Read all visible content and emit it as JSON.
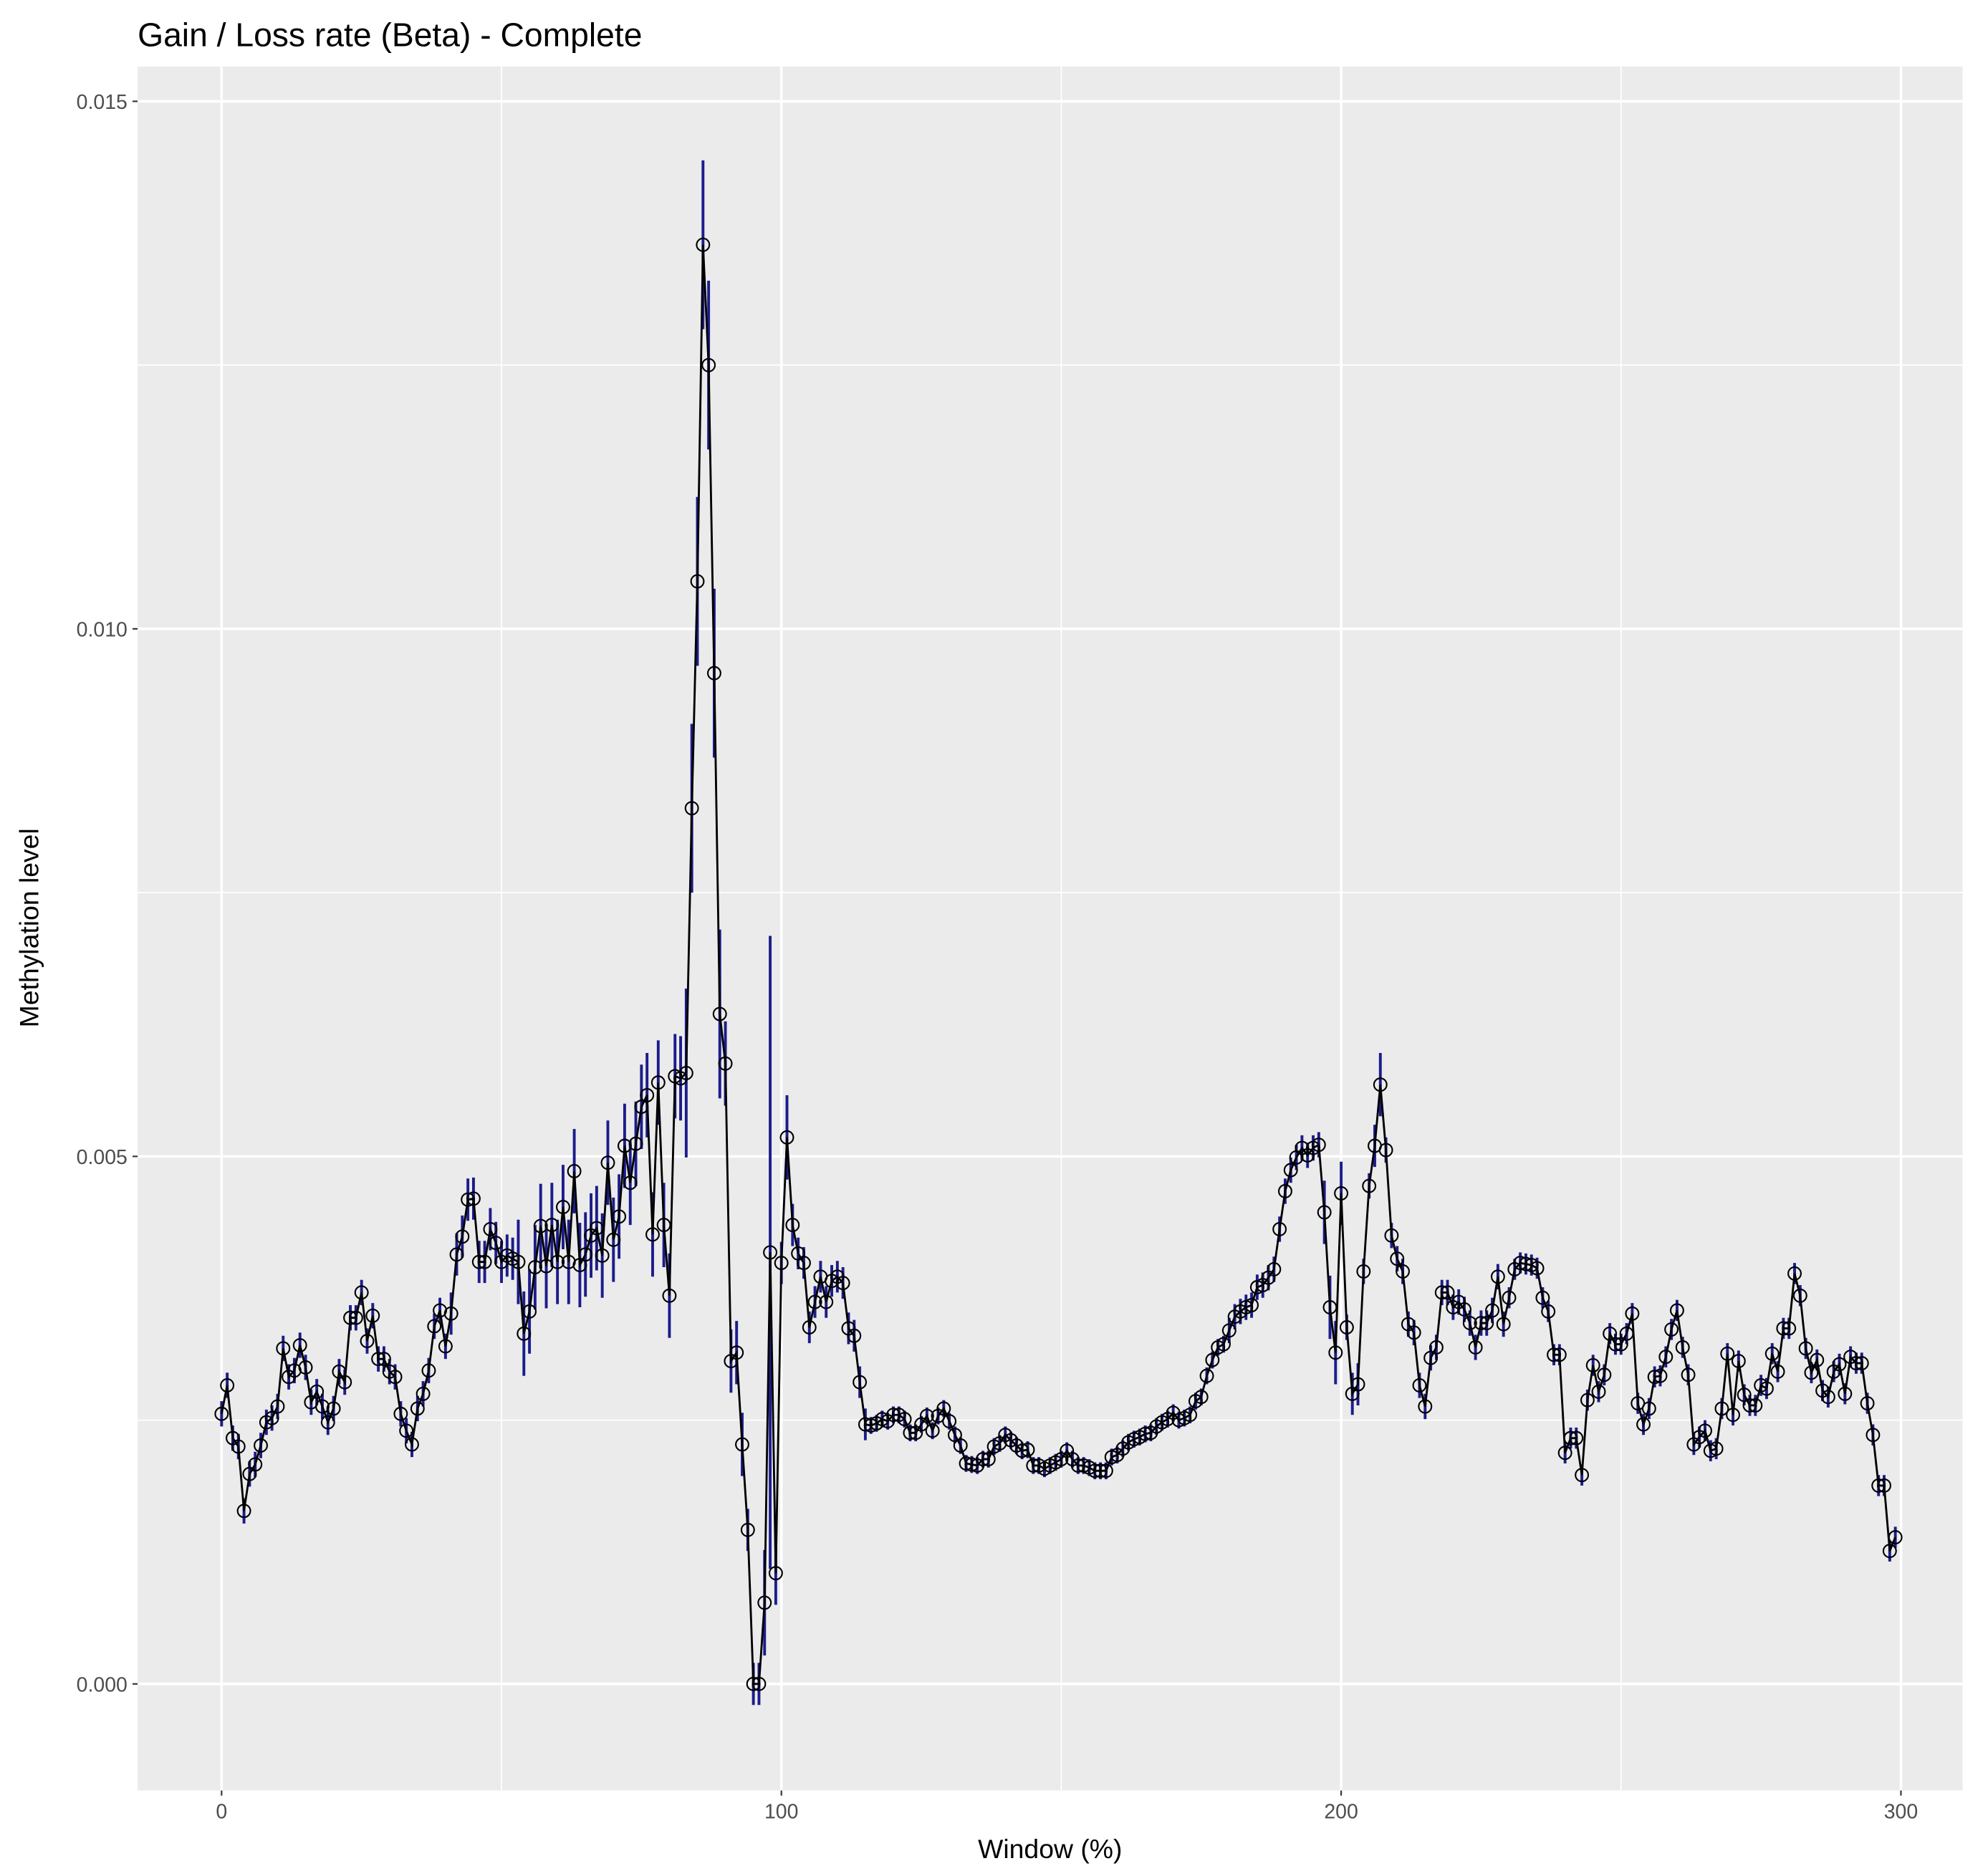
{
  "chart_data": {
    "type": "line-errorbar",
    "title": "Gain / Loss rate (Beta) - Complete",
    "xlabel": "Window (%)",
    "ylabel": "Methylation level",
    "xlim": [
      -15,
      311
    ],
    "ylim": [
      -0.00101,
      0.01533
    ],
    "xticks": [
      0,
      100,
      200,
      300
    ],
    "yticks": [
      {
        "value": 0,
        "label": "0.000"
      },
      0.005,
      {
        "value": 0.01,
        "label": "0.010"
      },
      0.015
    ],
    "grid": true,
    "line_color": "#000000",
    "error_color": "#1c1c8c",
    "point_color": "#000000",
    "x": [
      0,
      1,
      2,
      3,
      4,
      5,
      6,
      7,
      8,
      9,
      10,
      11,
      12,
      13,
      14,
      15,
      16,
      17,
      18,
      19,
      20,
      21,
      22,
      23,
      24,
      25,
      26,
      27,
      28,
      29,
      30,
      31,
      32,
      33,
      34,
      35,
      36,
      37,
      38,
      39,
      40,
      41,
      42,
      43,
      44,
      45,
      46,
      47,
      48,
      49,
      50,
      51,
      52,
      53,
      54,
      55,
      56,
      57,
      58,
      59,
      60,
      61,
      62,
      63,
      64,
      65,
      66,
      67,
      68,
      69,
      70,
      71,
      72,
      73,
      74,
      75,
      76,
      77,
      78,
      79,
      80,
      81,
      82,
      83,
      84,
      85,
      86,
      87,
      88,
      89,
      90,
      91,
      92,
      93,
      94,
      95,
      96,
      97,
      98,
      99,
      100,
      101,
      102,
      103,
      104,
      105,
      106,
      107,
      108,
      109,
      110,
      111,
      112,
      113,
      114,
      115,
      116,
      117,
      118,
      119,
      120,
      121,
      122,
      123,
      124,
      125,
      126,
      127,
      128,
      129,
      130,
      131,
      132,
      133,
      134,
      135,
      136,
      137,
      138,
      139,
      140,
      141,
      142,
      143,
      144,
      145,
      146,
      147,
      148,
      149,
      150,
      151,
      152,
      153,
      154,
      155,
      156,
      157,
      158,
      159,
      160,
      161,
      162,
      163,
      164,
      165,
      166,
      167,
      168,
      169,
      170,
      171,
      172,
      173,
      174,
      175,
      176,
      177,
      178,
      179,
      180,
      181,
      182,
      183,
      184,
      185,
      186,
      187,
      188,
      189,
      190,
      191,
      192,
      193,
      194,
      195,
      196,
      197,
      198,
      199,
      200,
      201,
      202,
      203,
      204,
      205,
      206,
      207,
      208,
      209,
      210,
      211,
      212,
      213,
      214,
      215,
      216,
      217,
      218,
      219,
      220,
      221,
      222,
      223,
      224,
      225,
      226,
      227,
      228,
      229,
      230,
      231,
      232,
      233,
      234,
      235,
      236,
      237,
      238,
      239,
      240,
      241,
      242,
      243,
      244,
      245,
      246,
      247,
      248,
      249,
      250,
      251,
      252,
      253,
      254,
      255,
      256,
      257,
      258,
      259,
      260,
      261,
      262,
      263,
      264,
      265,
      266,
      267,
      268,
      269,
      270,
      271,
      272,
      273,
      274,
      275,
      276,
      277,
      278,
      279,
      280,
      281,
      282,
      283,
      284,
      285,
      286,
      287,
      288,
      289,
      290,
      291,
      292,
      293,
      294,
      295,
      296,
      297,
      298,
      299
    ],
    "values": [
      0.00256,
      0.00283,
      0.00233,
      0.00225,
      0.00164,
      0.00199,
      0.00208,
      0.00226,
      0.00248,
      0.00252,
      0.00263,
      0.00318,
      0.00291,
      0.00297,
      0.00321,
      0.003,
      0.00267,
      0.00277,
      0.00263,
      0.00248,
      0.00261,
      0.00296,
      0.00286,
      0.00347,
      0.00347,
      0.00371,
      0.00325,
      0.00349,
      0.00308,
      0.00308,
      0.00296,
      0.00291,
      0.00256,
      0.0024,
      0.00227,
      0.00261,
      0.00275,
      0.00297,
      0.00339,
      0.00354,
      0.0032,
      0.00351,
      0.00407,
      0.00424,
      0.00459,
      0.0046,
      0.004,
      0.004,
      0.00431,
      0.00418,
      0.004,
      0.00406,
      0.00403,
      0.004,
      0.00332,
      0.00353,
      0.00395,
      0.00434,
      0.00396,
      0.00435,
      0.004,
      0.00452,
      0.004,
      0.00486,
      0.00397,
      0.00407,
      0.00425,
      0.00432,
      0.00406,
      0.00494,
      0.00421,
      0.00443,
      0.0051,
      0.00475,
      0.00512,
      0.00547,
      0.00558,
      0.00426,
      0.0057,
      0.00435,
      0.00368,
      0.00576,
      0.00574,
      0.00579,
      0.0083,
      0.01045,
      0.01364,
      0.0125,
      0.00958,
      0.00635,
      0.00588,
      0.00306,
      0.00314,
      0.00227,
      0.00146,
      0.0,
      0.0,
      0.00077,
      0.00409,
      0.00105,
      0.00399,
      0.00518,
      0.00435,
      0.00408,
      0.00399,
      0.00338,
      0.00362,
      0.00386,
      0.00362,
      0.00382,
      0.00386,
      0.0038,
      0.00337,
      0.0033,
      0.00286,
      0.00246,
      0.00245,
      0.00247,
      0.00251,
      0.00249,
      0.00255,
      0.00255,
      0.00251,
      0.00238,
      0.00238,
      0.00246,
      0.00254,
      0.0024,
      0.00254,
      0.00261,
      0.00249,
      0.00236,
      0.00226,
      0.00209,
      0.00208,
      0.00207,
      0.00213,
      0.00213,
      0.00225,
      0.00228,
      0.00236,
      0.00231,
      0.00226,
      0.00221,
      0.00222,
      0.00207,
      0.00207,
      0.00204,
      0.00207,
      0.0021,
      0.00213,
      0.00221,
      0.00213,
      0.00207,
      0.00207,
      0.00205,
      0.00202,
      0.00202,
      0.00202,
      0.00215,
      0.00217,
      0.00223,
      0.00229,
      0.00232,
      0.00234,
      0.00237,
      0.00238,
      0.00244,
      0.00248,
      0.00251,
      0.00257,
      0.0025,
      0.00252,
      0.00255,
      0.00268,
      0.00272,
      0.00292,
      0.00307,
      0.00319,
      0.00322,
      0.00335,
      0.00348,
      0.00353,
      0.00357,
      0.00359,
      0.00376,
      0.00378,
      0.00385,
      0.00393,
      0.00431,
      0.00467,
      0.00487,
      0.00499,
      0.00508,
      0.00501,
      0.00508,
      0.00511,
      0.00447,
      0.00357,
      0.00314,
      0.00465,
      0.00338,
      0.00275,
      0.00284,
      0.00391,
      0.00472,
      0.0051,
      0.00568,
      0.00506,
      0.00425,
      0.00403,
      0.00391,
      0.00341,
      0.00333,
      0.00283,
      0.00263,
      0.00309,
      0.00319,
      0.00371,
      0.00371,
      0.00357,
      0.00362,
      0.00355,
      0.00342,
      0.00319,
      0.00342,
      0.00342,
      0.00354,
      0.00386,
      0.00341,
      0.00366,
      0.00393,
      0.00399,
      0.00398,
      0.00397,
      0.00394,
      0.00366,
      0.00353,
      0.00312,
      0.00312,
      0.00219,
      0.00233,
      0.00233,
      0.00198,
      0.00269,
      0.00302,
      0.00277,
      0.00293,
      0.00332,
      0.00322,
      0.00322,
      0.00332,
      0.00351,
      0.00266,
      0.00246,
      0.00261,
      0.00291,
      0.00292,
      0.0031,
      0.00336,
      0.00354,
      0.00319,
      0.00293,
      0.00227,
      0.00234,
      0.0024,
      0.00221,
      0.00223,
      0.00261,
      0.00313,
      0.00255,
      0.00306,
      0.00274,
      0.00264,
      0.00264,
      0.00283,
      0.0028,
      0.00313,
      0.00296,
      0.00337,
      0.00337,
      0.00389,
      0.00368,
      0.00318,
      0.00295,
      0.00307,
      0.00278,
      0.00272,
      0.00296,
      0.00303,
      0.00275,
      0.0031,
      0.00304,
      0.00304,
      0.00266,
      0.00236,
      0.00188,
      0.00188,
      0.00126,
      0.00139
    ],
    "errors": [
      0.00012,
      0.00012,
      0.00012,
      0.00012,
      0.00012,
      0.00012,
      0.00012,
      0.00012,
      0.00012,
      0.00012,
      0.00012,
      0.00012,
      0.00012,
      0.00012,
      0.00012,
      0.00012,
      0.00012,
      0.00012,
      0.00012,
      0.00012,
      0.00012,
      0.00012,
      0.00012,
      0.00012,
      0.00012,
      0.00012,
      0.00012,
      0.00012,
      0.00012,
      0.00012,
      0.00012,
      0.00012,
      0.00012,
      0.00012,
      0.00012,
      0.00012,
      0.00012,
      0.00012,
      0.00012,
      0.00012,
      0.00012,
      0.0002,
      0.0002,
      0.0002,
      0.0002,
      0.0002,
      0.0002,
      0.0002,
      0.0002,
      0.0002,
      0.0002,
      0.0002,
      0.0002,
      0.0004,
      0.0004,
      0.0004,
      0.0004,
      0.0004,
      0.0004,
      0.0004,
      0.0004,
      0.0004,
      0.0004,
      0.0004,
      0.0004,
      0.0004,
      0.0004,
      0.0004,
      0.0004,
      0.0004,
      0.0004,
      0.0004,
      0.0004,
      0.0004,
      0.0004,
      0.0004,
      0.0004,
      0.0004,
      0.0004,
      0.0004,
      0.0004,
      0.0004,
      0.0004,
      0.0008,
      0.0008,
      0.0008,
      0.0008,
      0.0008,
      0.0008,
      0.0008,
      0.0004,
      0.0003,
      0.0003,
      0.0003,
      0.0002,
      0.0002,
      0.0002,
      0.0005,
      0.003,
      0.0003,
      0.0002,
      0.0004,
      0.0002,
      0.00015,
      0.00015,
      0.00015,
      0.00015,
      0.00015,
      0.00015,
      0.00015,
      0.00015,
      0.00015,
      0.00015,
      0.00015,
      0.00015,
      0.00015,
      8e-05,
      8e-05,
      8e-05,
      8e-05,
      8e-05,
      8e-05,
      8e-05,
      8e-05,
      8e-05,
      8e-05,
      8e-05,
      8e-05,
      8e-05,
      8e-05,
      8e-05,
      8e-05,
      8e-05,
      8e-05,
      8e-05,
      8e-05,
      8e-05,
      8e-05,
      8e-05,
      8e-05,
      8e-05,
      8e-05,
      8e-05,
      8e-05,
      8e-05,
      8e-05,
      8e-05,
      8e-05,
      8e-05,
      8e-05,
      8e-05,
      8e-05,
      8e-05,
      8e-05,
      8e-05,
      8e-05,
      8e-05,
      8e-05,
      8e-05,
      8e-05,
      8e-05,
      8e-05,
      8e-05,
      8e-05,
      8e-05,
      8e-05,
      8e-05,
      8e-05,
      8e-05,
      8e-05,
      8e-05,
      8e-05,
      8e-05,
      8e-05,
      8e-05,
      8e-05,
      8e-05,
      8e-05,
      8e-05,
      8e-05,
      0.00012,
      0.00012,
      0.00012,
      0.00012,
      0.00012,
      0.00012,
      0.00012,
      0.00012,
      0.00012,
      0.00012,
      0.00012,
      0.00012,
      0.00012,
      0.00012,
      0.00012,
      0.00012,
      0.00012,
      0.0003,
      0.0003,
      0.0003,
      0.0003,
      0.00012,
      0.0002,
      0.0002,
      0.00012,
      0.00012,
      0.0002,
      0.0003,
      0.00012,
      0.00012,
      0.00012,
      0.00012,
      0.00012,
      0.00012,
      0.00012,
      0.00012,
      0.00012,
      0.00012,
      0.00012,
      0.00012,
      0.00012,
      0.00012,
      0.00012,
      0.00012,
      0.00012,
      0.00012,
      0.00012,
      0.00012,
      0.00012,
      0.00012,
      0.0001,
      0.0001,
      0.0001,
      0.0001,
      0.0001,
      0.0001,
      0.0001,
      0.0001,
      0.0001,
      0.0001,
      0.0001,
      0.0001,
      0.0001,
      0.0001,
      0.0001,
      0.0001,
      0.0001,
      0.0001,
      0.0001,
      0.0001,
      0.0001,
      0.0001,
      0.0001,
      0.0001,
      0.0001,
      0.0001,
      0.0001,
      0.0001,
      0.0001,
      0.0001,
      0.0001,
      0.0001,
      0.0001,
      0.0001,
      0.0001,
      0.0001,
      0.0001,
      0.0001,
      0.0001,
      0.0001,
      0.0001,
      0.0001,
      0.0001,
      0.0001,
      0.0001,
      0.0001,
      0.0001,
      0.0001,
      0.0001,
      0.0001,
      0.0001,
      0.0001,
      0.0001,
      0.0001,
      0.0001,
      0.0001,
      0.0001,
      0.0001,
      0.0001,
      0.0001,
      0.0001,
      0.0001,
      0.0001,
      0.0001,
      0.0001,
      0.0001,
      0.0001,
      0.0001,
      0.0001,
      0.0001
    ]
  }
}
